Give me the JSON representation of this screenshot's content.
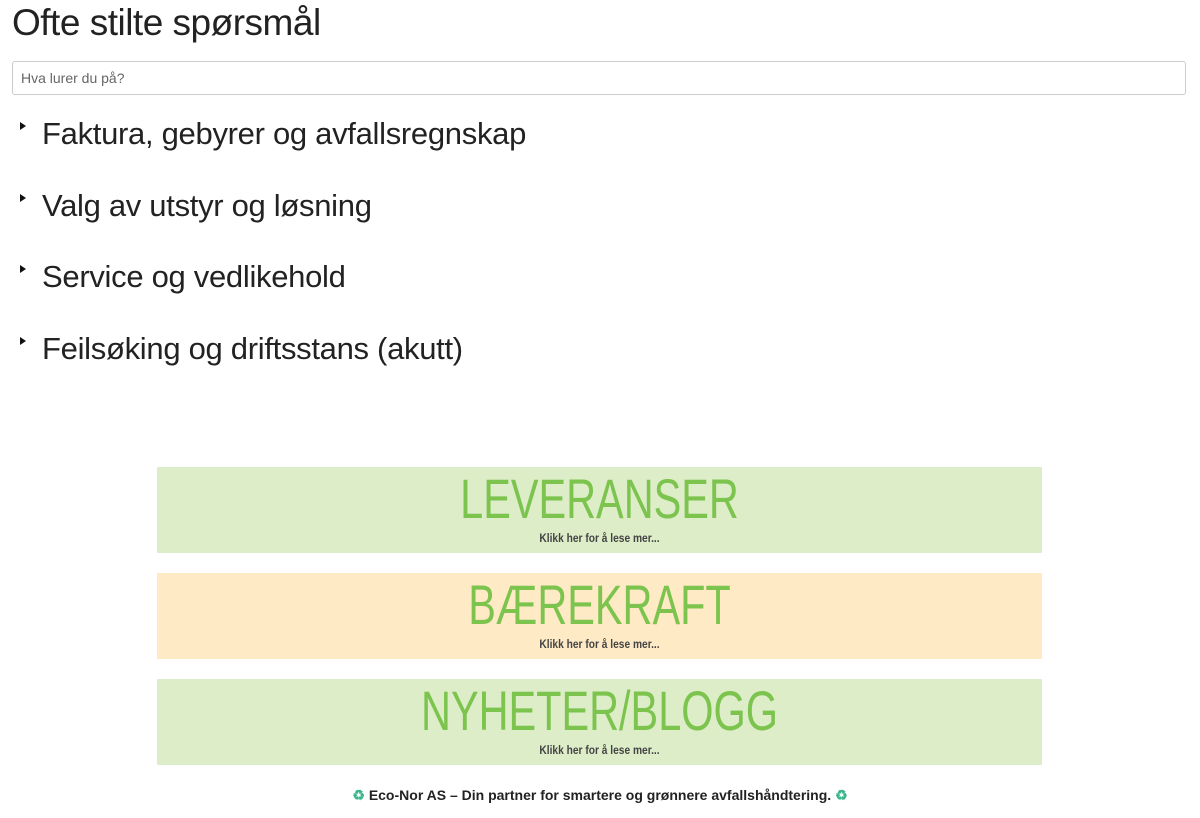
{
  "page": {
    "title": "Ofte stilte spørsmål"
  },
  "search": {
    "placeholder": "Hva lurer du på?",
    "value": ""
  },
  "faq_sections": [
    {
      "label": "Faktura, gebyrer og avfallsregnskap",
      "expanded": false
    },
    {
      "label": "Valg av utstyr og løsning",
      "expanded": false
    },
    {
      "label": "Service og vedlikehold",
      "expanded": false
    },
    {
      "label": "Feilsøking og driftsstans (akutt)",
      "expanded": false
    }
  ],
  "banners": [
    {
      "title": "LEVERANSER",
      "subtitle": "Klikk her for å lese mer...",
      "bg": "#dcedc8"
    },
    {
      "title": "BÆREKRAFT",
      "subtitle": "Klikk her for å lese mer...",
      "bg": "#ffeac6"
    },
    {
      "title": "NYHETER/BLOGG",
      "subtitle": "Klikk her for å lese mer...",
      "bg": "#dcedc8"
    }
  ],
  "footer": {
    "icon": "♻️",
    "text": "Eco-Nor AS – Din partner for smartere og grønnere avfallshåndtering."
  },
  "colors": {
    "banner_text": "#7cc44e",
    "recycle_icon": "#3bb58a"
  }
}
